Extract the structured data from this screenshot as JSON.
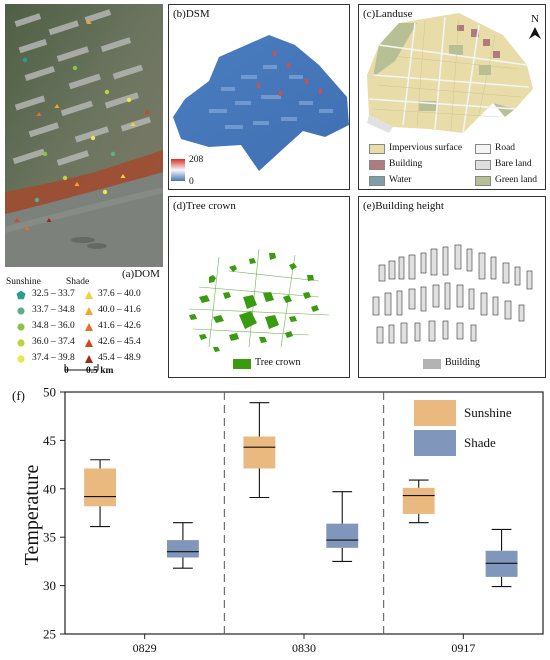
{
  "panels": {
    "dom": {
      "label": "(a)DOM",
      "sunshine_title": "Sunshine",
      "shade_title": "Shade",
      "sunshine_items": [
        {
          "range": "32.5 – 33.7",
          "color": "#2a9d8f"
        },
        {
          "range": "33.7 – 34.8",
          "color": "#5dae8b"
        },
        {
          "range": "34.8 – 36.0",
          "color": "#8bc34a"
        },
        {
          "range": "36.0 – 37.4",
          "color": "#c0d43a"
        },
        {
          "range": "37.4 – 39.8",
          "color": "#e8e84a"
        }
      ],
      "shade_items": [
        {
          "range": "37.6 – 40.0",
          "color": "#f4d03f"
        },
        {
          "range": "40.0 – 41.6",
          "color": "#f5a623"
        },
        {
          "range": "41.6 – 42.6",
          "color": "#f06a2a"
        },
        {
          "range": "42.6 – 45.4",
          "color": "#d9431e"
        },
        {
          "range": "45.4 – 48.9",
          "color": "#9e2a14"
        }
      ],
      "scale_zero": "0",
      "scale_label": "0.5 km"
    },
    "dsm": {
      "label": "(b)DSM",
      "max": "208",
      "min": "0"
    },
    "landuse": {
      "label": "(c)Landuse",
      "north": "N",
      "legend": [
        {
          "name": "Impervious surface",
          "color": "#e8dca8"
        },
        {
          "name": "Road",
          "color": "#f4f4f4"
        },
        {
          "name": "Building",
          "color": "#b07a7e"
        },
        {
          "name": "Bare land",
          "color": "#dedede"
        },
        {
          "name": "Water",
          "color": "#7e9ea8"
        },
        {
          "name": "Green land",
          "color": "#b7bf95"
        }
      ]
    },
    "tree": {
      "label": "(d)Tree crown",
      "legend": "Tree crown",
      "color": "#3a9a10"
    },
    "building": {
      "label": "(e)Building height",
      "legend": "Building",
      "color": "#b3b3b3"
    }
  },
  "chart_data": {
    "type": "box",
    "panel_label": "(f)",
    "ylabel": "Temperature",
    "ylim": [
      25,
      50
    ],
    "yticks": [
      25,
      30,
      35,
      40,
      45,
      50
    ],
    "categories": [
      "0829",
      "0830",
      "0917"
    ],
    "series": [
      {
        "name": "Sunshine",
        "color": "#e9b97f",
        "boxes": [
          {
            "min": 36.1,
            "q1": 38.2,
            "median": 39.2,
            "q3": 42.1,
            "max": 43.0
          },
          {
            "min": 39.1,
            "q1": 42.1,
            "median": 44.3,
            "q3": 45.4,
            "max": 48.9
          },
          {
            "min": 36.5,
            "q1": 37.4,
            "median": 39.3,
            "q3": 40.1,
            "max": 40.9
          }
        ]
      },
      {
        "name": "Shade",
        "color": "#8096ba",
        "boxes": [
          {
            "min": 31.8,
            "q1": 32.9,
            "median": 33.5,
            "q3": 34.7,
            "max": 36.5
          },
          {
            "min": 32.5,
            "q1": 33.9,
            "median": 34.7,
            "q3": 36.4,
            "max": 39.7
          },
          {
            "min": 29.9,
            "q1": 30.9,
            "median": 32.3,
            "q3": 33.6,
            "max": 35.8
          }
        ]
      }
    ]
  }
}
